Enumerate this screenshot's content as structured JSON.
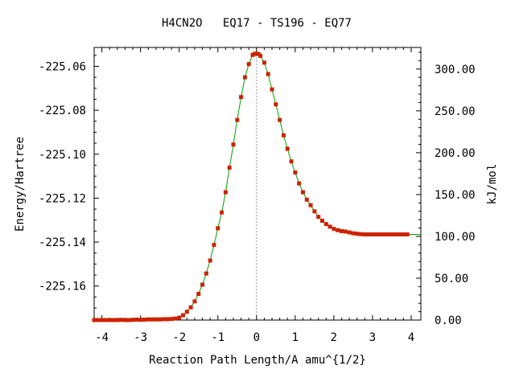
{
  "chart_data": {
    "type": "line",
    "title": "H4CN2O   EQ17 - TS196 - EQ77",
    "xlabel": "Reaction Path Length/A amu^{1/2}",
    "ylabel": "Energy/Hartree",
    "y2label": "kJ/mol",
    "xlim": [
      -4.2,
      4.25
    ],
    "ylim": [
      -225.1755,
      -225.0514
    ],
    "y2lim": [
      0,
      325.8
    ],
    "x_ticks": [
      "-4",
      "-3",
      "-2",
      "-1",
      "0",
      "1",
      "2",
      "3",
      "4"
    ],
    "y_ticks": [
      "-225.06",
      "-225.08",
      "-225.10",
      "-225.12",
      "-225.14",
      "-225.16"
    ],
    "y2_ticks": [
      "0.00",
      "50.00",
      "100.00",
      "150.00",
      "200.00",
      "250.00",
      "300.00"
    ],
    "grid": false,
    "ts_marker_x": 0,
    "line_color": "#00a000",
    "point_color": "#cc2200",
    "marker_color": "#999999",
    "series": [
      {
        "x": [
          -4.2,
          -4.1,
          -4.0,
          -3.9,
          -3.8,
          -3.7,
          -3.6,
          -3.5,
          -3.4,
          -3.3,
          -3.2,
          -3.1,
          -3.0,
          -2.9,
          -2.8,
          -2.7,
          -2.6,
          -2.5,
          -2.4,
          -2.3,
          -2.2,
          -2.1,
          -2.0,
          -1.9,
          -1.8,
          -1.7,
          -1.6,
          -1.5,
          -1.4,
          -1.3,
          -1.2,
          -1.1,
          -1.0,
          -0.9,
          -0.8,
          -0.7,
          -0.6,
          -0.5,
          -0.4,
          -0.3,
          -0.2,
          -0.1,
          -0.05,
          0.0,
          0.05,
          0.1,
          0.2,
          0.3,
          0.4,
          0.5,
          0.6,
          0.7,
          0.8,
          0.9,
          1.0,
          1.1,
          1.2,
          1.3,
          1.4,
          1.5,
          1.6,
          1.7,
          1.8,
          1.9,
          2.0,
          2.1,
          2.2,
          2.3,
          2.4,
          2.5,
          2.6,
          2.7,
          2.8,
          2.9,
          3.0,
          3.1,
          3.2,
          3.3,
          3.4,
          3.5,
          3.6,
          3.7,
          3.8,
          3.9
        ],
        "y": [
          -225.1755,
          -225.1755,
          -225.1755,
          -225.1755,
          -225.1755,
          -225.1755,
          -225.1755,
          -225.1754,
          -225.1755,
          -225.1755,
          -225.1754,
          -225.1753,
          -225.1754,
          -225.1753,
          -225.1752,
          -225.1752,
          -225.1752,
          -225.1752,
          -225.1751,
          -225.1751,
          -225.175,
          -225.1748,
          -225.1745,
          -225.1733,
          -225.1717,
          -225.1697,
          -225.167,
          -225.1636,
          -225.1594,
          -225.1543,
          -225.1484,
          -225.1413,
          -225.1337,
          -225.1265,
          -225.1173,
          -225.1061,
          -225.0956,
          -225.0844,
          -225.074,
          -225.065,
          -225.059,
          -225.0548,
          -225.0543,
          -225.0543,
          -225.0544,
          -225.0552,
          -225.0583,
          -225.0635,
          -225.0705,
          -225.0773,
          -225.0844,
          -225.0914,
          -225.0975,
          -225.1033,
          -225.1083,
          -225.1133,
          -225.1173,
          -225.1207,
          -225.1232,
          -225.126,
          -225.1285,
          -225.1303,
          -225.1318,
          -225.133,
          -225.134,
          -225.1346,
          -225.135,
          -225.1352,
          -225.1356,
          -225.136,
          -225.1362,
          -225.1364,
          -225.1365,
          -225.1365,
          -225.1365,
          -225.1365,
          -225.1365,
          -225.1365,
          -225.1365,
          -225.1365,
          -225.1365,
          -225.1365,
          -225.1365,
          -225.1365
        ]
      }
    ]
  }
}
